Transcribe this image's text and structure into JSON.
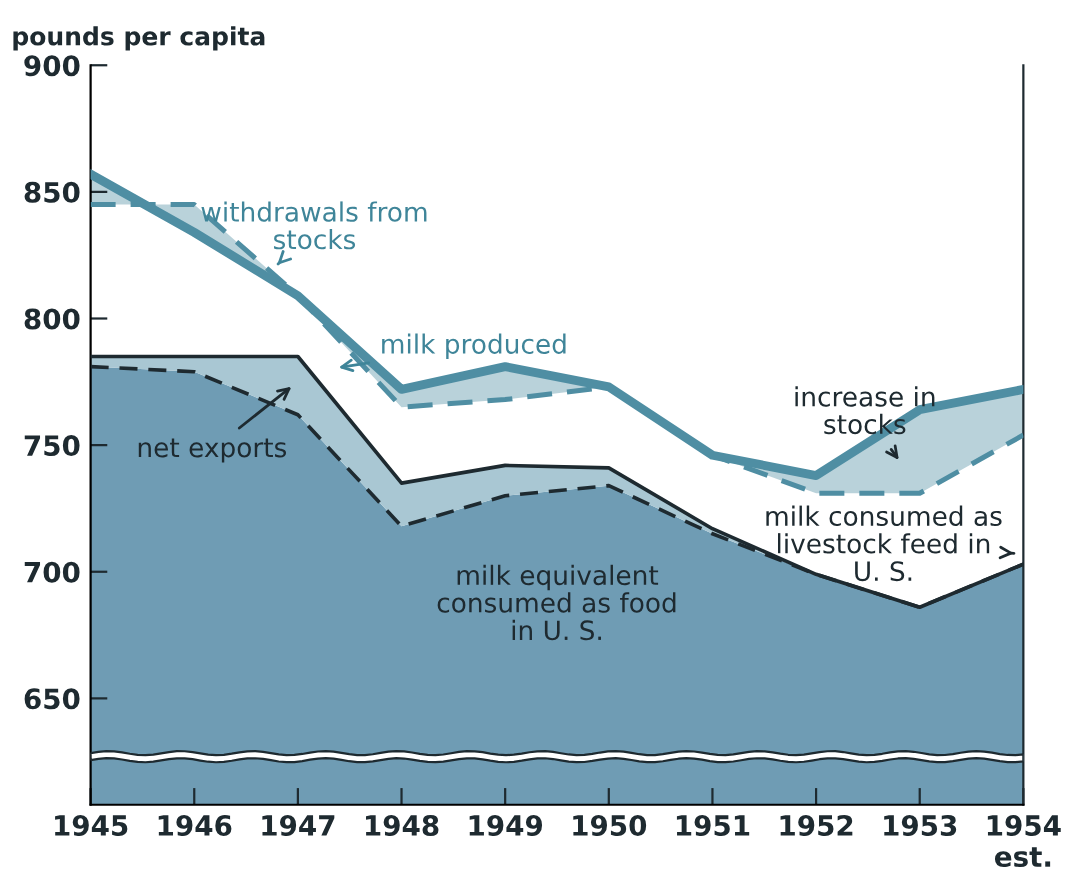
{
  "chart_data": {
    "type": "area",
    "ylabel": "pounds per capita",
    "x": [
      1945,
      1946,
      1947,
      1948,
      1949,
      1950,
      1951,
      1952,
      1953,
      1954
    ],
    "xlim": [
      1945,
      1954
    ],
    "xticks": [
      1945,
      1946,
      1947,
      1948,
      1949,
      1950,
      1951,
      1952,
      1953,
      {
        "value": 1954,
        "label": "1954\nest."
      }
    ],
    "ylim": [
      608,
      900
    ],
    "yticks": [
      650,
      700,
      750,
      800,
      850,
      900
    ],
    "grid": false,
    "series": [
      {
        "line_style": "dashed",
        "color": "#6f9cb4",
        "values": [
          781,
          779,
          762,
          718,
          730,
          734,
          715,
          699,
          686,
          703
        ]
      },
      {
        "line_style": "solid",
        "color": "#a9c7d3",
        "values": [
          785,
          785,
          785,
          735,
          742,
          741,
          717,
          699,
          686,
          703
        ]
      },
      {
        "type": "line",
        "line_style": "dashed",
        "color": "#4f8ea3",
        "values": [
          845,
          845,
          809,
          765,
          768,
          773,
          746,
          731,
          731,
          754
        ]
      },
      {
        "line_style": "solid",
        "color": "#4f8ea3",
        "values": [
          857,
          834,
          809,
          772,
          781,
          773,
          746,
          738,
          764,
          772
        ]
      }
    ],
    "annotations": [
      "withdrawals from\nstocks",
      "milk produced",
      "net exports",
      "milk equivalent\nconsumed as food\nin U. S.",
      "increase in\nstocks",
      "milk consumed as\nlivestock feed in\nU. S."
    ]
  }
}
